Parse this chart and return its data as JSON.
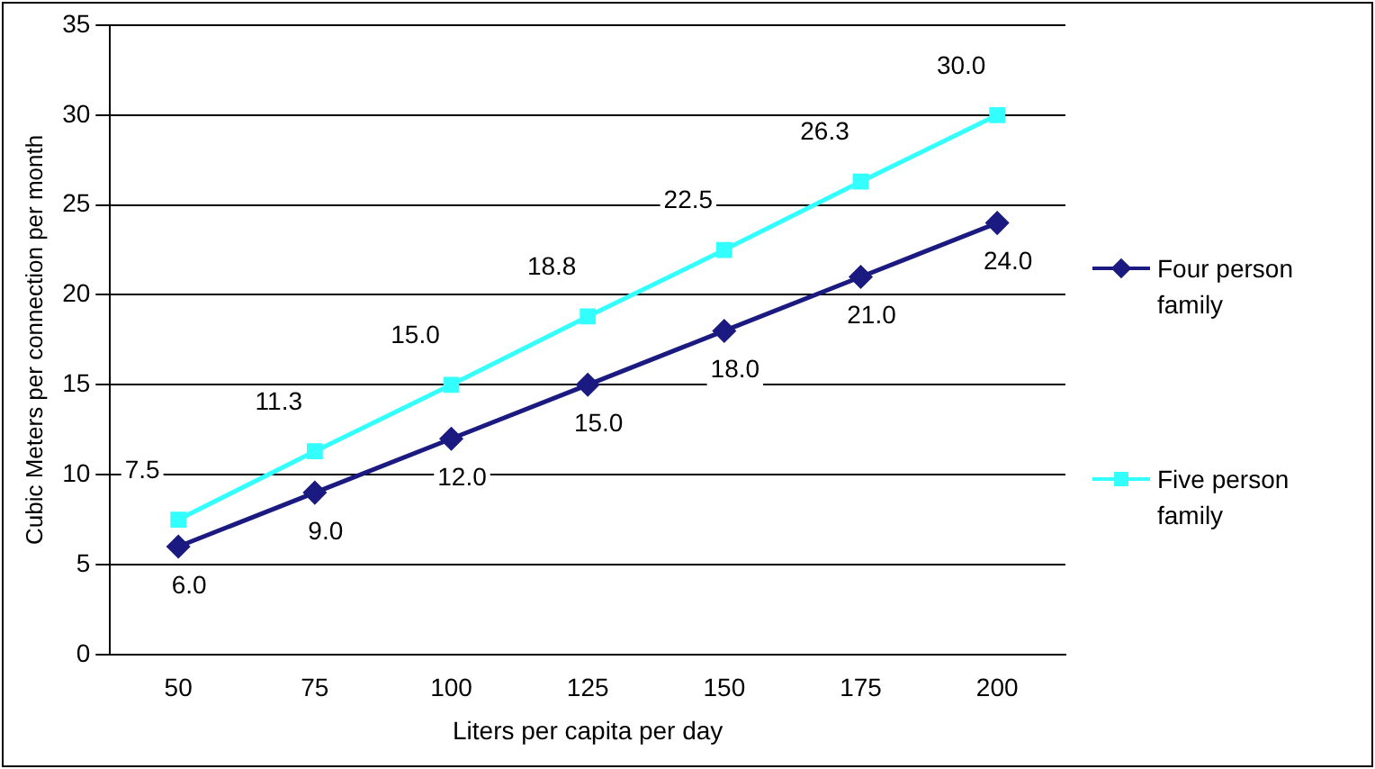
{
  "chart_data": {
    "type": "line",
    "xlabel": "Liters per capita per day",
    "ylabel": "Cubic Meters per connection per month",
    "categories": [
      "50",
      "75",
      "100",
      "125",
      "150",
      "175",
      "200"
    ],
    "series": [
      {
        "name": "Four person family",
        "color": "#1a1a80",
        "marker": "diamond",
        "values": [
          6.0,
          9.0,
          12.0,
          15.0,
          18.0,
          21.0,
          24.0
        ],
        "value_labels": [
          "6.0",
          "9.0",
          "12.0",
          "15.0",
          "18.0",
          "21.0",
          "24.0"
        ]
      },
      {
        "name": "Five person family",
        "color": "#33ffff",
        "marker": "square",
        "values": [
          7.5,
          11.3,
          15.0,
          18.8,
          22.5,
          26.3,
          30.0
        ],
        "value_labels": [
          "7.5",
          "11.3",
          "15.0",
          "18.8",
          "22.5",
          "26.3",
          "30.0"
        ]
      }
    ],
    "ylim": [
      0,
      35
    ],
    "yticks": [
      0,
      5,
      10,
      15,
      20,
      25,
      30,
      35
    ],
    "grid": "y",
    "legend": "right",
    "line_style": "solid"
  }
}
